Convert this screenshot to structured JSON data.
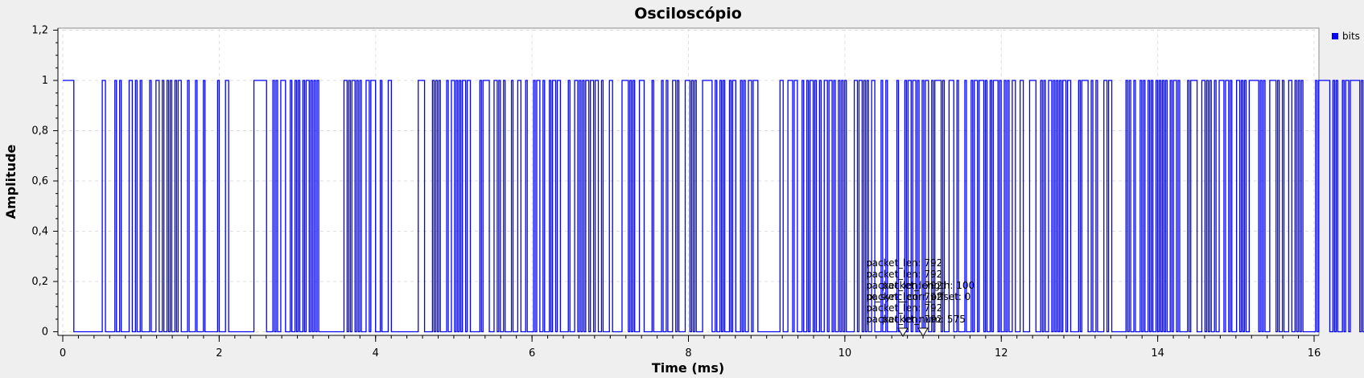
{
  "chart_data": {
    "type": "line",
    "title": "Osciloscópio",
    "xlabel": "Time (ms)",
    "ylabel": "Amplitude",
    "xlim": [
      0,
      16
    ],
    "ylim": [
      0,
      1.2
    ],
    "x_ticks": [
      0,
      2,
      4,
      6,
      8,
      10,
      12,
      14,
      16
    ],
    "x_tick_labels": [
      "0",
      "2",
      "4",
      "6",
      "8",
      "10",
      "12",
      "14",
      "16"
    ],
    "y_ticks": [
      0,
      0.2,
      0.4,
      0.6,
      0.8,
      1,
      1.2
    ],
    "y_tick_labels": [
      "0",
      "0,2",
      "0,4",
      "0,6",
      "0,8",
      "1",
      "1,2"
    ],
    "grid": true,
    "legend_position": "right",
    "bit_period_ms": 0.0202,
    "series": [
      {
        "name": "bits",
        "color": "#0000ff",
        "x_start": 0,
        "bits": "111111100000000000000000011000000100100000110010010000010001100100101001011000010000100001000000001000011000000000000000011111111000010100111000100101001011010101000000000000000011010110101000110111000100001100000000000000000111100000101010000100110101011011000000101111000110100100001000110001000010110010001011011000001000110101011011011001000011000000111101010001110000010000010010001101000011101010000111111001001010001011000101001101110000000000000011000111011000100101101001001101101001010100000110110101001100001001000000100001011011010010110010111101000111001000010001011011101001011101001010011000110000111100010100110101010110110000010111100100100001101100000000010100100010100101001010101001011010000010111100011010100100111011010001101010011111101010001111010010001100101010000000010111111100101000101101111110101101"
      }
    ]
  },
  "tags": [
    "packet_len: 792",
    "packet_len: 792",
    "packet_len: 792",
    "packet_length: 100",
    "packet_len: 792",
    "rx_sync_corr_offset: 0",
    "packet_len: 792",
    "packet_num: 575",
    "packet_len: 792"
  ]
}
